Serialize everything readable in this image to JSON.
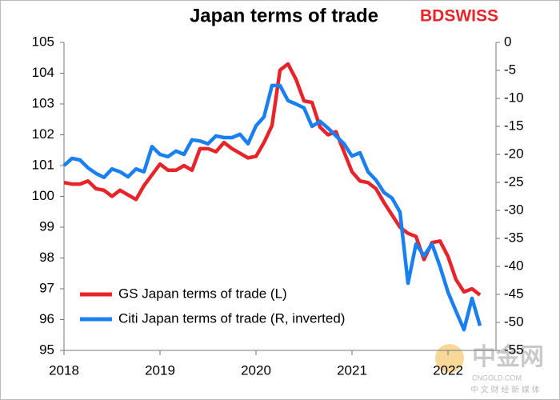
{
  "chart_data": {
    "type": "line",
    "title": "Japan terms of trade",
    "logo": "BDSWISS",
    "watermark": "中金网",
    "watermark_url": "CNGOLD.COM",
    "watermark_sub": "中 文 财 经 新 媒 体",
    "categories": [
      "2018",
      null,
      null,
      null,
      null,
      null,
      null,
      null,
      null,
      null,
      null,
      null,
      "2019",
      null,
      null,
      null,
      null,
      null,
      null,
      null,
      null,
      null,
      null,
      null,
      "2020",
      null,
      null,
      null,
      null,
      null,
      null,
      null,
      null,
      null,
      null,
      null,
      "2021",
      null,
      null,
      null,
      null,
      null,
      null,
      null,
      null,
      null,
      null,
      null,
      "2022",
      null,
      null,
      null,
      null
    ],
    "series": [
      {
        "name": "GS Japan terms of trade (L)",
        "color": "#e8242b",
        "axis": "y",
        "values": [
          100.45,
          100.4,
          100.4,
          100.5,
          100.25,
          100.2,
          100.0,
          100.2,
          100.05,
          99.9,
          100.35,
          100.7,
          101.05,
          100.85,
          100.85,
          101.0,
          100.85,
          101.55,
          101.55,
          101.45,
          101.75,
          101.55,
          101.4,
          101.25,
          101.3,
          101.75,
          102.3,
          104.1,
          104.3,
          103.8,
          103.1,
          103.05,
          102.25,
          102.0,
          102.1,
          101.45,
          100.8,
          100.5,
          100.45,
          100.25,
          99.8,
          99.4,
          99.0,
          98.8,
          98.7,
          97.95,
          98.5,
          98.55,
          98.05,
          97.3,
          96.9,
          97.0,
          96.8
        ]
      },
      {
        "name": "Citi Japan terms of trade (R, inverted)",
        "color": "#1a7ff0",
        "axis": "y2",
        "values": [
          -22,
          -20.7,
          -21,
          -22.4,
          -23.4,
          -24.1,
          -22.6,
          -23.1,
          -24,
          -22.6,
          -23.1,
          -18.6,
          -20,
          -20.4,
          -19.4,
          -20,
          -17.4,
          -17.6,
          -18.1,
          -16.7,
          -17,
          -17,
          -16.4,
          -18.1,
          -14.9,
          -13.3,
          -7.7,
          -7.7,
          -10.4,
          -11,
          -11.7,
          -15,
          -14.1,
          -15.3,
          -16.7,
          -18.1,
          -20.3,
          -19.7,
          -23.1,
          -24.6,
          -26.8,
          -27.8,
          -30.3,
          -43,
          -36,
          -38.1,
          -36,
          -40,
          -44.6,
          -48,
          -51.3,
          -45.7,
          -50.6
        ]
      }
    ],
    "ylim": [
      95,
      105
    ],
    "yticks": [
      95,
      96,
      97,
      98,
      99,
      100,
      101,
      102,
      103,
      104,
      105
    ],
    "y2lim": [
      -55,
      0
    ],
    "y2ticks": [
      0,
      -5,
      -10,
      -15,
      -20,
      -25,
      -30,
      -35,
      -40,
      -45,
      -50,
      -55
    ],
    "grid": false,
    "legend": "lower-left"
  }
}
